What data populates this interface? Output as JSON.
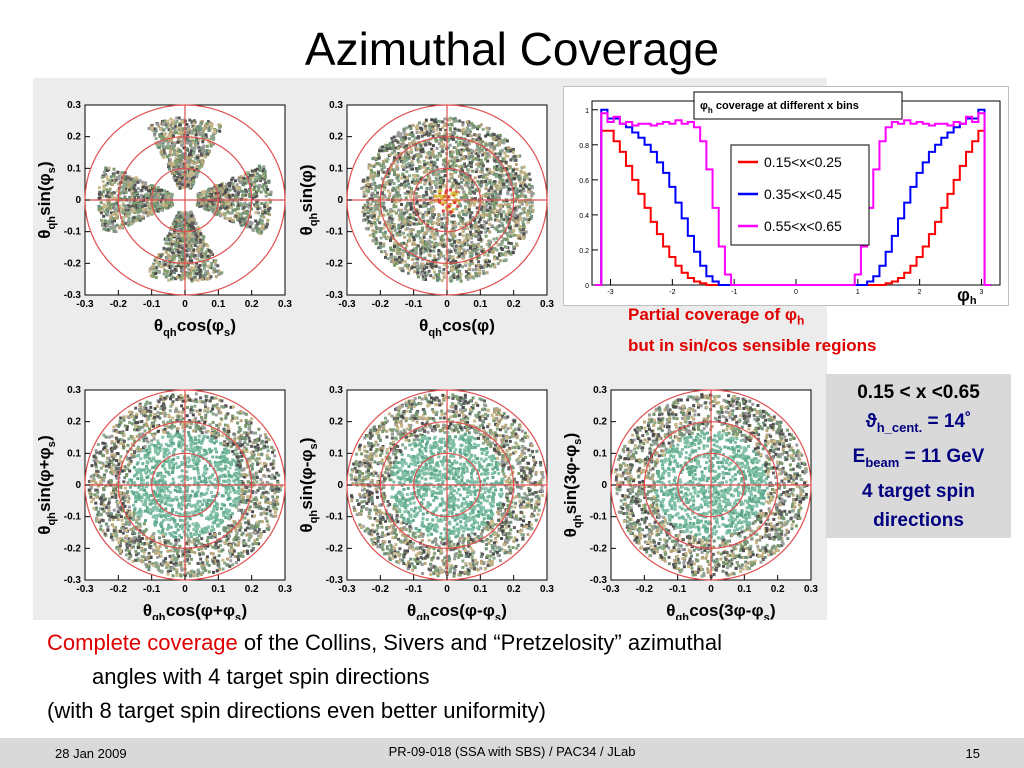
{
  "slide": {
    "title": "Azimuthal Coverage",
    "note_line1": "Partial coverage of ",
    "note_symbol": "φ",
    "note_sub": "h",
    "note_line2": "but in sin/cos sensible regions",
    "params": {
      "x_range": "0.15 < x <0.65",
      "theta_sym": "ϑ",
      "theta_sub": "h_cent.",
      "theta_val": " = 14˚",
      "ebeam_sym": "E",
      "ebeam_sub": "beam",
      "ebeam_val": " = 11 GeV",
      "spin_line1": "4 target spin",
      "spin_line2": "directions"
    },
    "caption": {
      "red": "Complete coverage",
      "rest1": " of the Collins, Sivers and “Pretzelosity” azimuthal",
      "rest2": "angles with 4 target spin directions",
      "line3": "(with 8 target spin directions even better uniformity)"
    },
    "footer": {
      "date": "28 Jan 2009",
      "center": "PR-09-018 (SSA with SBS) / PAC34 / JLab",
      "page": "15"
    }
  },
  "chart_data": [
    {
      "type": "scatter",
      "title": "",
      "xlabel": "θqh cos(φs)",
      "ylabel": "θqh sin(φs)",
      "xlim": [
        -0.3,
        0.3
      ],
      "ylim": [
        -0.3,
        0.3
      ],
      "ticks": [
        "-0.3",
        "-0.2",
        "-0.1",
        "0",
        "0.1",
        "0.2",
        "0.3"
      ],
      "pattern": "clover",
      "x_label_parts": {
        "pre": "θ",
        "sub": "qh",
        "mid": " cos(φ",
        "sub2": "s",
        "post": ")"
      },
      "y_label_parts": {
        "pre": "θ",
        "sub": "qh",
        "mid": " sin(φ",
        "sub2": "s",
        "post": ")"
      }
    },
    {
      "type": "scatter",
      "xlabel": "θqh cos(φ)",
      "ylabel": "θqh sin(φ)",
      "xlim": [
        -0.3,
        0.3
      ],
      "ylim": [
        -0.3,
        0.3
      ],
      "ticks": [
        "-0.3",
        "-0.2",
        "-0.1",
        "0",
        "0.1",
        "0.2",
        "0.3"
      ],
      "pattern": "disk-small",
      "x_label_parts": {
        "pre": "θ",
        "sub": "qh",
        "mid": " cos(φ)",
        "sub2": "",
        "post": ""
      },
      "y_label_parts": {
        "pre": "θ",
        "sub": "qh",
        "mid": " sin(φ)",
        "sub2": "",
        "post": ""
      }
    },
    {
      "type": "scatter",
      "xlabel": "θqh cos(φ+φs)",
      "ylabel": "θqh sin(φ+φs)",
      "xlim": [
        -0.3,
        0.3
      ],
      "ylim": [
        -0.3,
        0.3
      ],
      "ticks": [
        "-0.3",
        "-0.2",
        "-0.1",
        "0",
        "0.1",
        "0.2",
        "0.3"
      ],
      "pattern": "disk",
      "x_label_parts": {
        "pre": "θ",
        "sub": "qh",
        "mid": " cos(φ+φ",
        "sub2": "s",
        "post": ")"
      },
      "y_label_parts": {
        "pre": "θ",
        "sub": "qh",
        "mid": " sin(φ+φ",
        "sub2": "s",
        "post": ")"
      }
    },
    {
      "type": "scatter",
      "xlabel": "θqh cos(φ-φs)",
      "ylabel": "θqh sin(φ-φs)",
      "xlim": [
        -0.3,
        0.3
      ],
      "ylim": [
        -0.3,
        0.3
      ],
      "ticks": [
        "-0.3",
        "-0.2",
        "-0.1",
        "0",
        "0.1",
        "0.2",
        "0.3"
      ],
      "pattern": "disk",
      "x_label_parts": {
        "pre": "θ",
        "sub": "qh",
        "mid": " cos(φ-φ",
        "sub2": "s",
        "post": ")"
      },
      "y_label_parts": {
        "pre": "θ",
        "sub": "qh",
        "mid": " sin(φ-φ",
        "sub2": "s",
        "post": ")"
      }
    },
    {
      "type": "scatter",
      "xlabel": "θqh cos(3φ-φs)",
      "ylabel": "θqh sin(3φ-φs)",
      "xlim": [
        -0.3,
        0.3
      ],
      "ylim": [
        -0.3,
        0.3
      ],
      "ticks": [
        "-0.3",
        "-0.2",
        "-0.1",
        "0",
        "0.1",
        "0.2",
        "0.3"
      ],
      "pattern": "disk",
      "x_label_parts": {
        "pre": "θ",
        "sub": "qh",
        "mid": " cos(3φ-φ",
        "sub2": "s",
        "post": ")"
      },
      "y_label_parts": {
        "pre": "θ",
        "sub": "qh",
        "mid": " sin(3φ-φ",
        "sub2": "s",
        "post": ")"
      }
    },
    {
      "type": "line",
      "title_sym": "φ",
      "title_sub": "h",
      "title_text": " coverage at different x bins",
      "xlabel_sym": "φ",
      "xlabel_sub": "h",
      "xlim": [
        -3.3,
        3.3
      ],
      "ylim": [
        0,
        1.05
      ],
      "x_ticks": [
        "-3",
        "-2",
        "-1",
        "0",
        "1",
        "2",
        "3"
      ],
      "y_ticks": [
        "0",
        "0.2",
        "0.4",
        "0.6",
        "0.8",
        "1"
      ],
      "legend_position": "top-right",
      "x": [
        -3.2,
        -3.1,
        -3.0,
        -2.9,
        -2.8,
        -2.7,
        -2.6,
        -2.5,
        -2.4,
        -2.3,
        -2.2,
        -2.1,
        -2.0,
        -1.9,
        -1.8,
        -1.7,
        -1.6,
        -1.5,
        -1.4,
        -1.3,
        -1.2,
        -1.1,
        -1.0,
        -0.9,
        -0.8,
        -0.7,
        -0.6,
        -0.5,
        -0.4,
        -0.3,
        -0.2,
        -0.1,
        0.0,
        0.1,
        0.2,
        0.3,
        0.4,
        0.5,
        0.6,
        0.7,
        0.8,
        0.9,
        1.0,
        1.1,
        1.2,
        1.3,
        1.4,
        1.5,
        1.6,
        1.7,
        1.8,
        1.9,
        2.0,
        2.1,
        2.2,
        2.3,
        2.4,
        2.5,
        2.6,
        2.7,
        2.8,
        2.9,
        3.0,
        3.1
      ],
      "series": [
        {
          "name": "0.15<x<0.25",
          "color": "#ff0000",
          "values": [
            0.0,
            0.88,
            0.88,
            0.82,
            0.76,
            0.68,
            0.6,
            0.52,
            0.44,
            0.36,
            0.29,
            0.22,
            0.16,
            0.11,
            0.07,
            0.04,
            0.02,
            0.01,
            0.0,
            0.0,
            0.0,
            0.0,
            0.0,
            0.0,
            0.0,
            0.0,
            0.0,
            0.0,
            0.0,
            0.0,
            0.0,
            0.0,
            0.0,
            0.0,
            0.0,
            0.0,
            0.0,
            0.0,
            0.0,
            0.0,
            0.0,
            0.0,
            0.0,
            0.0,
            0.0,
            0.0,
            0.0,
            0.01,
            0.02,
            0.04,
            0.07,
            0.11,
            0.16,
            0.22,
            0.29,
            0.36,
            0.44,
            0.52,
            0.6,
            0.68,
            0.76,
            0.82,
            0.88,
            0.0
          ]
        },
        {
          "name": "0.35<x<0.45",
          "color": "#0000ff",
          "values": [
            0.0,
            1.0,
            0.95,
            0.95,
            0.92,
            0.9,
            0.87,
            0.84,
            0.8,
            0.76,
            0.7,
            0.64,
            0.56,
            0.47,
            0.38,
            0.28,
            0.19,
            0.11,
            0.05,
            0.02,
            0.0,
            0.0,
            0.0,
            0.0,
            0.0,
            0.0,
            0.0,
            0.0,
            0.0,
            0.0,
            0.0,
            0.0,
            0.0,
            0.0,
            0.0,
            0.0,
            0.0,
            0.0,
            0.0,
            0.0,
            0.0,
            0.0,
            0.0,
            0.0,
            0.02,
            0.05,
            0.11,
            0.19,
            0.28,
            0.38,
            0.47,
            0.56,
            0.64,
            0.7,
            0.76,
            0.8,
            0.84,
            0.87,
            0.9,
            0.92,
            0.95,
            0.95,
            1.0,
            0.0
          ]
        },
        {
          "name": "0.55<x<0.65",
          "color": "#ff00ff",
          "values": [
            0.0,
            0.98,
            0.93,
            0.96,
            0.92,
            0.93,
            0.91,
            0.92,
            0.92,
            0.91,
            0.92,
            0.93,
            0.92,
            0.94,
            0.92,
            0.93,
            0.9,
            0.82,
            0.66,
            0.44,
            0.22,
            0.06,
            0.0,
            0.0,
            0.0,
            0.0,
            0.0,
            0.0,
            0.0,
            0.0,
            0.0,
            0.0,
            0.0,
            0.0,
            0.0,
            0.0,
            0.0,
            0.0,
            0.0,
            0.0,
            0.0,
            0.0,
            0.06,
            0.22,
            0.44,
            0.66,
            0.82,
            0.9,
            0.93,
            0.92,
            0.94,
            0.92,
            0.93,
            0.92,
            0.91,
            0.92,
            0.92,
            0.91,
            0.93,
            0.92,
            0.96,
            0.93,
            0.98,
            0.0
          ]
        }
      ]
    }
  ]
}
